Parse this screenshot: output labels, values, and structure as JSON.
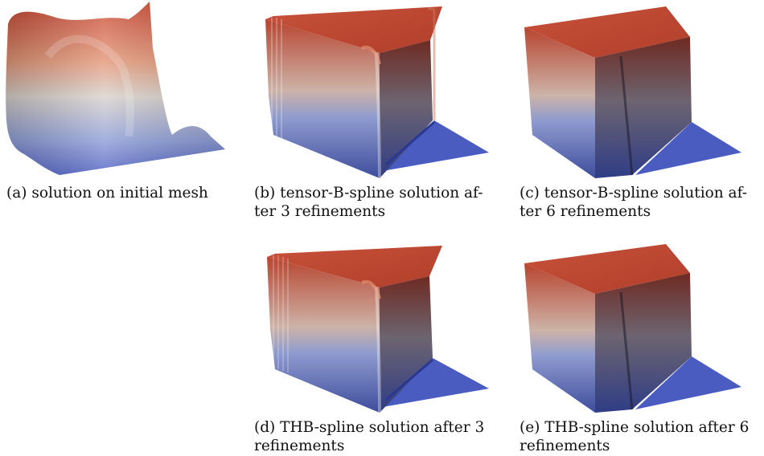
{
  "figures": [
    {
      "id": "a",
      "caption": "(a) solution on initial mesh"
    },
    {
      "id": "b",
      "caption": "(b) tensor-B-spline solution af- ter 3 refinements"
    },
    {
      "id": "c",
      "caption": "(c) tensor-B-spline solution af- ter 6 refinements"
    },
    {
      "id": "d",
      "caption": "(d) THB-spline solution after 3 refinements"
    },
    {
      "id": "e",
      "caption": "(e) THB-spline solution after 6 refinements"
    }
  ],
  "colors": {
    "high": "#c5462f",
    "mid": "#d9d4cf",
    "low": "#4a5cc0"
  }
}
